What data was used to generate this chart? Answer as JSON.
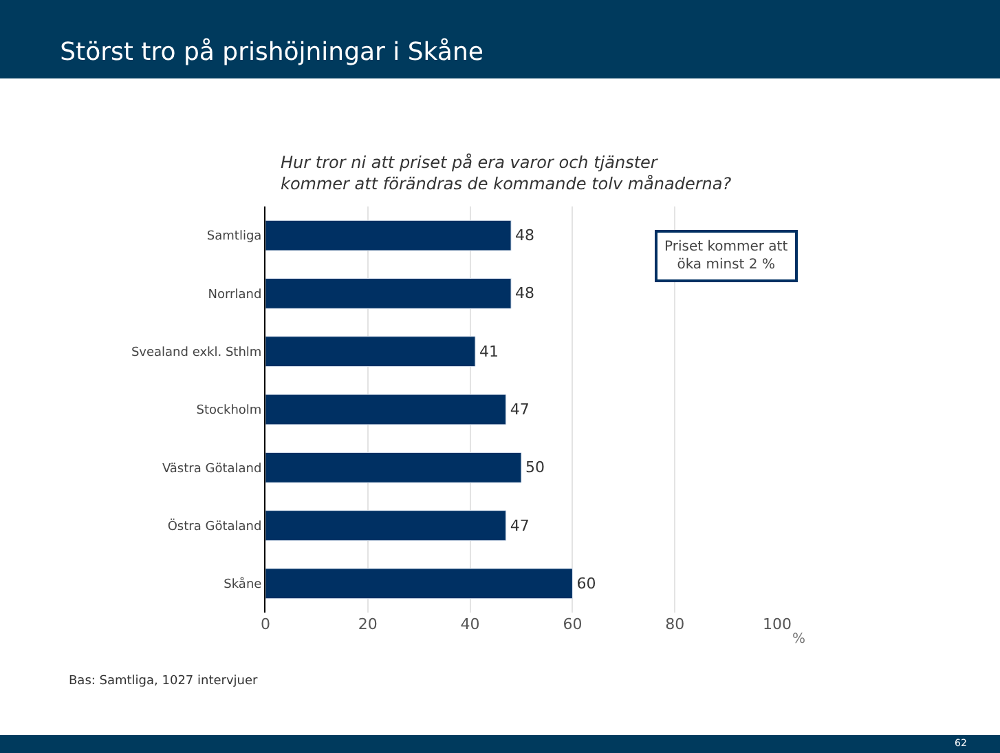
{
  "chart_data": {
    "type": "bar",
    "orientation": "horizontal",
    "title": "Störst tro på prishöjningar i Skåne",
    "subtitle": "Hur tror ni att priset på era varor och tjänster\nkommer att förändras de kommande tolv månaderna?",
    "categories": [
      "Samtliga",
      "Norrland",
      "Svealand exkl. Sthlm",
      "Stockholm",
      "Västra Götaland",
      "Östra Götaland",
      "Skåne"
    ],
    "values": [
      48,
      48,
      41,
      47,
      50,
      47,
      60
    ],
    "color": "#003063",
    "data_labels": true,
    "xlabel": "%",
    "xlim": [
      0,
      100
    ],
    "xticks": [
      0,
      20,
      40,
      60,
      80,
      100
    ],
    "grid": "x",
    "annotations": [
      "Priset kommer att\nöka minst 2 %",
      "Bas: Samtliga, 1027 intervjuer",
      "62"
    ]
  }
}
